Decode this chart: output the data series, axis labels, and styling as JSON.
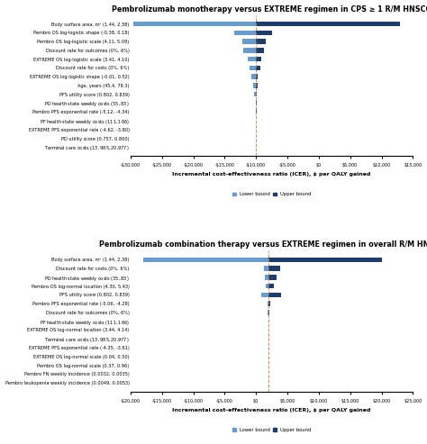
{
  "chart1": {
    "title": "Pembrolizumab monotherapy versus EXTREME regimen in CPS ≥ 1 R/M HNSCC",
    "labels": [
      "Body surface area, m² (1.44, 2.38)",
      "Pembro OS log-logistic shape (-0.38, 0.18)",
      "Pembro OS log-logistic scale (4.11, 5.09)",
      "Discount rate for outcomes (0%, 6%)",
      "EXTREME OS log-logistic scale (3.41, 4.10)",
      "Discount rate for costs (0%, 6%)",
      "EXTREME OS log-logistic shape (-0.01, 0.52)",
      "Age, years (45.4, 79.3)",
      "PFS utility score (0.802, 0.839)",
      "PD health state weekly costs ($55, $83)",
      "Pembro PFS exponential rate (-5.12, -4.34)",
      "PF health state weekly costs ($111, $166)",
      "EXTREME PFS exponential rate (-4.62, -3.80)",
      "PD utility score (0.757, 0.800)",
      "Terminal care costs ($13,985, $20,977)"
    ],
    "lower_vals": [
      -29500,
      -13500,
      -12200,
      -12000,
      -11300,
      -11100,
      -10700,
      -10500,
      -10300,
      -10100,
      -10050,
      -10020,
      -10010,
      -10005,
      -10002
    ],
    "upper_vals": [
      13000,
      -7500,
      -8500,
      -8800,
      -9200,
      -9300,
      -9700,
      -9800,
      -9900,
      -9950,
      -9960,
      -9970,
      -9980,
      -9990,
      -9995
    ],
    "base": -10000,
    "xlim": [
      -30000,
      15000
    ],
    "xticks": [
      -30000,
      -25000,
      -20000,
      -15000,
      -10000,
      -5000,
      0,
      5000,
      10000,
      15000
    ],
    "xlabel": "Incremental cost-effectiveness ratio (ICER), $ per QALY gained",
    "color_lower": "#6b9bc8",
    "color_upper": "#1f3d6b"
  },
  "chart2": {
    "title": "Pembrolizumab combination therapy versus EXTREME regimen in overall R/M HNSCC",
    "labels": [
      "Body surface area, m² (1.44, 2.38)",
      "Discount rate for costs (0%, 6%)",
      "PD health state weekly costs ($35, $83)",
      "Pembro OS log-normal location (4.30, 5.43)",
      "PFS utility score (0.802, 0.839)",
      "Pembro PFS exponential rate (-5.06, -4.28)",
      "Discount rate for outcomes (0%, 6%)",
      "PF health state weekly costs ($111, $166)",
      "EXTREME OS log-normal location (3.44, 4.14)",
      "Terminal care costs ($13,985, $20,977)",
      "EXTREME PFS exponential rate (-4.35, -3.61)",
      "EXTREME OS log-normal scale (0.04, 0.50)",
      "Pembro OS log-normal scale (0.37, 0.96)",
      "Pembro FN weekly incidence (0.0032, 0.0035)",
      "Pembro leukopenia weekly incidence (0.0049, 0.0053)"
    ],
    "lower_vals": [
      -18000,
      1200,
      1400,
      1500,
      800,
      1800,
      1900,
      1950,
      1970,
      1980,
      1985,
      1990,
      1992,
      1995,
      1997
    ],
    "upper_vals": [
      20000,
      3800,
      3200,
      2800,
      4000,
      2200,
      2100,
      2050,
      2030,
      2020,
      2015,
      2010,
      2008,
      2005,
      2003
    ],
    "base": 2000,
    "xlim": [
      -20000,
      25000
    ],
    "xticks": [
      -20000,
      -15000,
      -10000,
      -5000,
      0,
      5000,
      10000,
      15000,
      20000,
      25000
    ],
    "xlabel": "Incremental cost-effectiveness ratio (ICER), $ per QALY gained",
    "color_lower": "#6b9bc8",
    "color_upper": "#1f3d6b"
  },
  "legend_lower_label": "Lower bound",
  "legend_upper_label": "Upper bound",
  "bg_color": "#ffffff",
  "refline_color": "#c9783a",
  "refline_style": "--",
  "title_fontsize": 5.8,
  "label_fontsize": 3.6,
  "tick_fontsize": 3.5,
  "xlabel_fontsize": 4.5,
  "legend_fontsize": 3.8,
  "bar_height": 0.55
}
